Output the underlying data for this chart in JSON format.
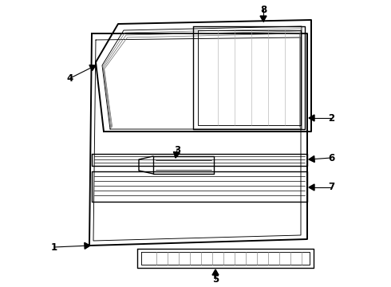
{
  "background_color": "#ffffff",
  "line_color": "#000000",
  "fig_width": 4.9,
  "fig_height": 3.6,
  "dpi": 100,
  "lw_thick": 1.4,
  "lw_med": 1.0,
  "lw_thin": 0.65
}
